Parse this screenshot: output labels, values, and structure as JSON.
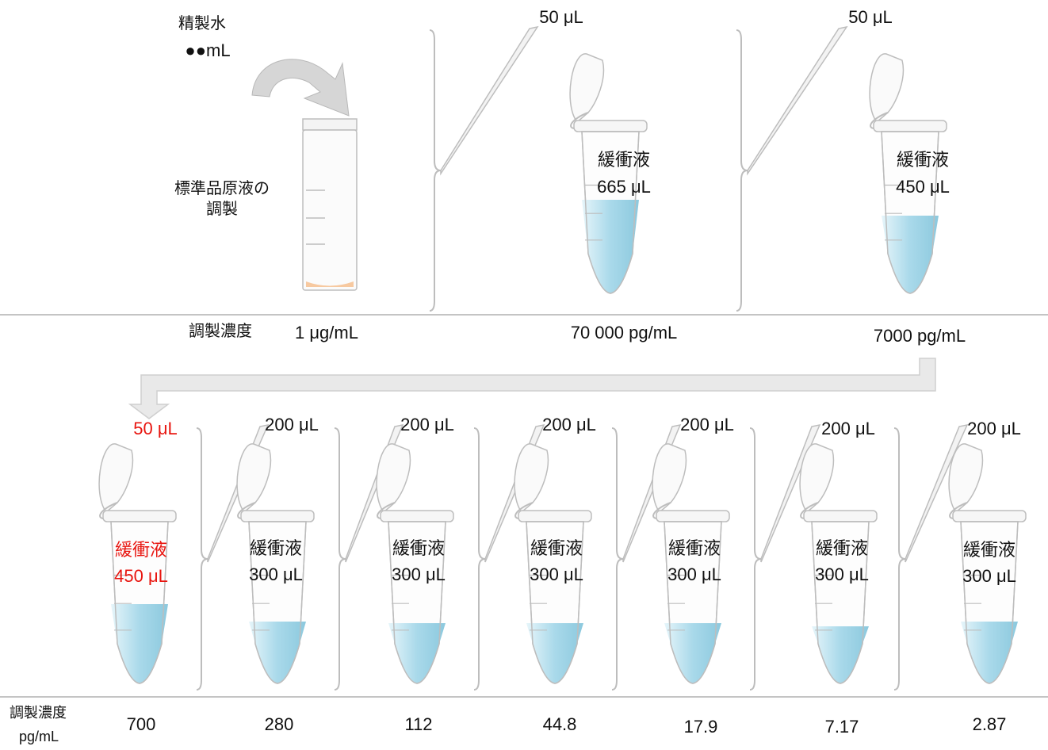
{
  "top": {
    "water": {
      "name": "精製水",
      "amount": "●●mL"
    },
    "stock_label": [
      "標準品原液の",
      "調製"
    ],
    "conc_title": "調製濃度",
    "steps": [
      {
        "transfer": "",
        "buffer_name": "",
        "buffer_volume": "",
        "concentration": "1 μg/mL"
      },
      {
        "transfer": "50 μL",
        "buffer_name": "緩衝液",
        "buffer_volume": "665 μL",
        "concentration": "70 000 pg/mL"
      },
      {
        "transfer": "50 μL",
        "buffer_name": "緩衝液",
        "buffer_volume": "450 μL",
        "concentration": "7000 pg/mL"
      }
    ]
  },
  "bottom": {
    "conc_title": "調製濃度",
    "conc_unit": "pg/mL",
    "steps": [
      {
        "transfer": "50 μL",
        "buffer_name": "緩衝液",
        "buffer_volume": "450 μL",
        "concentration": "700",
        "highlight": true
      },
      {
        "transfer": "200 μL",
        "buffer_name": "緩衝液",
        "buffer_volume": "300 μL",
        "concentration": "280",
        "highlight": false
      },
      {
        "transfer": "200 μL",
        "buffer_name": "緩衝液",
        "buffer_volume": "300 μL",
        "concentration": "112",
        "highlight": false
      },
      {
        "transfer": "200 μL",
        "buffer_name": "緩衝液",
        "buffer_volume": "300 μL",
        "concentration": "44.8",
        "highlight": false
      },
      {
        "transfer": "200 μL",
        "buffer_name": "緩衝液",
        "buffer_volume": "300 μL",
        "concentration": "17.9",
        "highlight": false
      },
      {
        "transfer": "200 μL",
        "buffer_name": "緩衝液",
        "buffer_volume": "300 μL",
        "concentration": "7.17",
        "highlight": false
      },
      {
        "transfer": "200 μL",
        "buffer_name": "緩衝液",
        "buffer_volume": "300 μL",
        "concentration": "2.87",
        "highlight": false
      }
    ]
  },
  "colors": {
    "liquid": "#a9d9ea",
    "pellet": "#f7c9a0",
    "outline": "#bdbdbd",
    "highlight": "#e8150f",
    "rule": "#b0b0b0",
    "arrow_fill": "#e9e9e9"
  }
}
